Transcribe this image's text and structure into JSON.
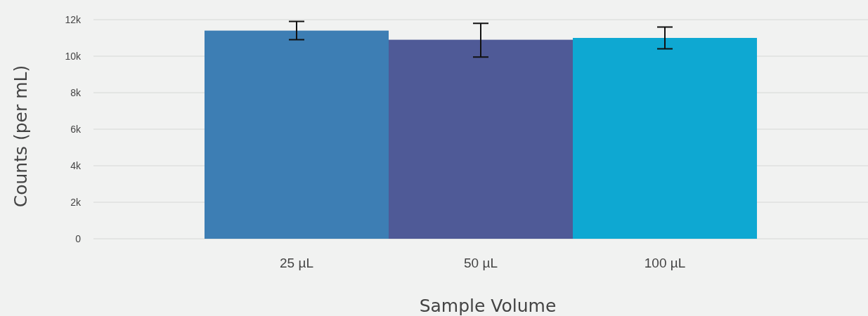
{
  "chart_data": {
    "type": "bar",
    "xlabel": "Sample Volume",
    "ylabel": "Counts (per mL)",
    "categories": [
      "25 µL",
      "50 µL",
      "100 µL"
    ],
    "values": [
      11400,
      10900,
      11000
    ],
    "colors": [
      "#3d7eb4",
      "#4f5a97",
      "#0ea8d2"
    ],
    "errors": [
      500,
      [
        9950,
        11800
      ],
      600
    ],
    "ylim": [
      0,
      12000
    ],
    "yticks": [
      {
        "value": 0,
        "label": "0"
      },
      {
        "value": 2000,
        "label": "2k"
      },
      {
        "value": 4000,
        "label": "4k"
      },
      {
        "value": 6000,
        "label": "6k"
      },
      {
        "value": 8000,
        "label": "8k"
      },
      {
        "value": 10000,
        "label": "10k"
      },
      {
        "value": 12000,
        "label": "12k"
      }
    ],
    "grid": "y"
  }
}
